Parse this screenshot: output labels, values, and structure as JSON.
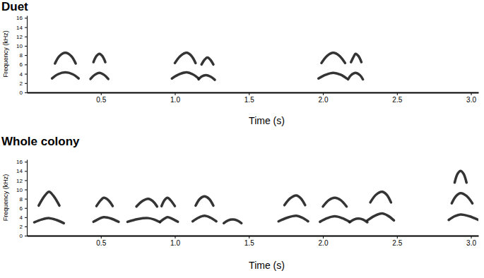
{
  "chart_data": [
    {
      "type": "line",
      "title": "Duet",
      "x_label": "Time (s)",
      "y_label": "Frequency (kHz)",
      "color": "#1e1e1e",
      "xlim": [
        0,
        3.05
      ],
      "xticks": [
        0.5,
        {
          "value": 1,
          "label": "1.0"
        },
        1.5,
        {
          "value": 2,
          "label": "2.0"
        },
        2.5,
        {
          "value": 3,
          "label": "3.0"
        }
      ],
      "ylim": [
        0,
        16.5
      ],
      "yticks": [
        0,
        2,
        4,
        6,
        8,
        10,
        12,
        14,
        16
      ],
      "series": [
        {
          "x": [
            0.17,
            0.21,
            0.26,
            0.31,
            0.35
          ],
          "values": [
            3.0,
            3.9,
            4.3,
            3.9,
            3.0
          ]
        },
        {
          "x": [
            0.19,
            0.22,
            0.26,
            0.3,
            0.33
          ],
          "values": [
            6.2,
            7.8,
            8.5,
            7.8,
            6.2
          ]
        },
        {
          "x": [
            0.43,
            0.46,
            0.49,
            0.52,
            0.55
          ],
          "values": [
            2.9,
            3.8,
            4.2,
            3.8,
            2.9
          ]
        },
        {
          "x": [
            0.45,
            0.47,
            0.49,
            0.51,
            0.53
          ],
          "values": [
            6.5,
            7.8,
            8.3,
            7.8,
            6.5
          ]
        },
        {
          "x": [
            0.98,
            1.03,
            1.08,
            1.12,
            1.16
          ],
          "values": [
            3.0,
            3.9,
            4.3,
            3.9,
            3.0
          ]
        },
        {
          "x": [
            1.0,
            1.04,
            1.08,
            1.11,
            1.14
          ],
          "values": [
            6.3,
            7.9,
            8.5,
            7.9,
            6.3
          ]
        },
        {
          "x": [
            1.16,
            1.18,
            1.21,
            1.24,
            1.27
          ],
          "values": [
            2.8,
            3.4,
            3.7,
            3.4,
            2.7
          ]
        },
        {
          "x": [
            1.18,
            1.2,
            1.22,
            1.24,
            1.26
          ],
          "values": [
            6.0,
            7.0,
            7.5,
            7.0,
            6.0
          ]
        },
        {
          "x": [
            1.97,
            2.02,
            2.07,
            2.12,
            2.16
          ],
          "values": [
            3.0,
            3.8,
            4.2,
            3.8,
            3.0
          ]
        },
        {
          "x": [
            1.99,
            2.03,
            2.07,
            2.11,
            2.15
          ],
          "values": [
            6.3,
            7.9,
            8.5,
            7.9,
            6.3
          ]
        },
        {
          "x": [
            2.17,
            2.19,
            2.22,
            2.25,
            2.27
          ],
          "values": [
            2.8,
            3.7,
            4.2,
            3.7,
            2.8
          ]
        },
        {
          "x": [
            2.19,
            2.21,
            2.22,
            2.24,
            2.26
          ],
          "values": [
            6.5,
            7.8,
            8.3,
            7.8,
            6.5
          ]
        }
      ]
    },
    {
      "type": "line",
      "title": "Whole colony",
      "x_label": "Time (s)",
      "y_label": "Frequency (kHz)",
      "color": "#1e1e1e",
      "xlim": [
        0,
        3.05
      ],
      "xticks": [
        0.5,
        {
          "value": 1,
          "label": "1.0"
        },
        1.5,
        {
          "value": 2,
          "label": "2.0"
        },
        2.5,
        {
          "value": 3,
          "label": "3.0"
        }
      ],
      "ylim": [
        0,
        16.5
      ],
      "yticks": [
        0,
        2,
        4,
        6,
        8,
        10,
        12,
        14,
        16
      ],
      "series": [
        {
          "x": [
            0.05,
            0.1,
            0.15,
            0.2,
            0.25
          ],
          "values": [
            2.9,
            3.5,
            3.8,
            3.4,
            2.7
          ]
        },
        {
          "x": [
            0.08,
            0.12,
            0.15,
            0.18,
            0.22
          ],
          "values": [
            6.5,
            8.6,
            9.5,
            8.6,
            6.5
          ]
        },
        {
          "x": [
            0.45,
            0.49,
            0.52,
            0.57,
            0.62
          ],
          "values": [
            3.0,
            3.7,
            4.0,
            3.7,
            3.0
          ]
        },
        {
          "x": [
            0.47,
            0.5,
            0.52,
            0.55,
            0.58
          ],
          "values": [
            6.4,
            7.7,
            8.2,
            7.7,
            6.4
          ]
        },
        {
          "x": [
            0.68,
            0.75,
            0.82,
            0.86,
            0.9
          ],
          "values": [
            3.0,
            3.6,
            3.8,
            3.5,
            2.9
          ]
        },
        {
          "x": [
            0.74,
            0.78,
            0.82,
            0.85,
            0.88
          ],
          "values": [
            6.3,
            7.5,
            8.0,
            7.5,
            6.3
          ]
        },
        {
          "x": [
            0.9,
            0.93,
            0.95,
            0.98,
            1.02
          ],
          "values": [
            3.0,
            3.7,
            4.0,
            3.7,
            3.0
          ]
        },
        {
          "x": [
            0.91,
            0.93,
            0.95,
            0.97,
            1.0
          ],
          "values": [
            6.4,
            7.7,
            8.2,
            7.7,
            6.4
          ]
        },
        {
          "x": [
            1.12,
            1.16,
            1.2,
            1.24,
            1.28
          ],
          "values": [
            3.1,
            3.9,
            4.3,
            3.9,
            3.1
          ]
        },
        {
          "x": [
            1.14,
            1.17,
            1.2,
            1.23,
            1.26
          ],
          "values": [
            6.5,
            8.0,
            8.5,
            8.0,
            6.5
          ]
        },
        {
          "x": [
            1.33,
            1.36,
            1.39,
            1.42,
            1.45
          ],
          "values": [
            2.7,
            3.3,
            3.5,
            3.3,
            2.7
          ]
        },
        {
          "x": [
            1.7,
            1.76,
            1.82,
            1.86,
            1.9
          ],
          "values": [
            3.1,
            3.9,
            4.3,
            3.9,
            3.1
          ]
        },
        {
          "x": [
            1.74,
            1.78,
            1.82,
            1.85,
            1.88
          ],
          "values": [
            6.6,
            8.1,
            8.7,
            8.1,
            6.6
          ]
        },
        {
          "x": [
            1.98,
            2.03,
            2.08,
            2.13,
            2.18
          ],
          "values": [
            3.0,
            3.8,
            4.2,
            3.8,
            3.0
          ]
        },
        {
          "x": [
            2.0,
            2.04,
            2.08,
            2.12,
            2.16
          ],
          "values": [
            6.3,
            7.7,
            8.2,
            7.7,
            6.3
          ]
        },
        {
          "x": [
            2.18,
            2.21,
            2.24,
            2.27,
            2.3
          ],
          "values": [
            2.9,
            3.5,
            3.7,
            3.5,
            2.9
          ]
        },
        {
          "x": [
            2.3,
            2.35,
            2.4,
            2.44,
            2.48
          ],
          "values": [
            3.3,
            4.3,
            4.8,
            4.3,
            3.3
          ]
        },
        {
          "x": [
            2.32,
            2.36,
            2.4,
            2.43,
            2.46
          ],
          "values": [
            7.2,
            8.9,
            9.5,
            8.9,
            7.2
          ]
        },
        {
          "x": [
            2.85,
            2.89,
            2.93,
            2.99,
            3.05
          ],
          "values": [
            3.4,
            4.2,
            4.6,
            4.2,
            3.4
          ]
        },
        {
          "x": [
            2.87,
            2.9,
            2.93,
            2.97,
            3.01
          ],
          "values": [
            7.0,
            8.6,
            9.2,
            8.6,
            7.0
          ]
        },
        {
          "x": [
            2.89,
            2.91,
            2.93,
            2.95,
            2.97
          ],
          "values": [
            11.5,
            13.4,
            14.0,
            13.4,
            11.5
          ]
        }
      ]
    }
  ]
}
